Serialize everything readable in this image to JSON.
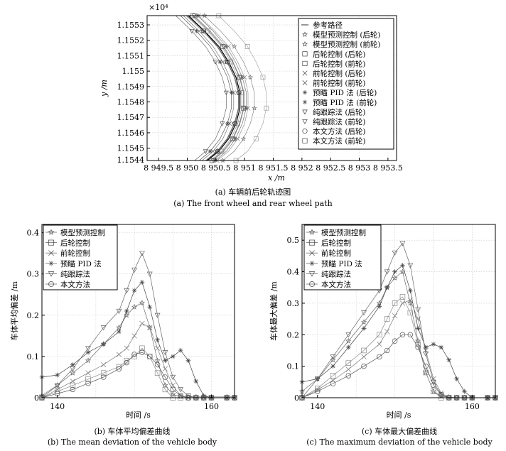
{
  "charts": [
    {
      "id": "a",
      "type": "line",
      "exponent_label": "×10⁴",
      "xlabel": "x /m",
      "ylabel": "y /m",
      "xlim": [
        8949.3,
        8953.65
      ],
      "ylim": [
        11544.2,
        11553.6
      ],
      "xticks": [
        8949.5,
        8950,
        8950.5,
        8951,
        8951.5,
        8952,
        8952.5,
        8953,
        8953.5
      ],
      "xtick_labels": [
        "8 949.5",
        "8 950",
        "8 950.5",
        "8 951",
        "8 951.5",
        "8 952",
        "8 952.5",
        "8 953",
        "8 953.5"
      ],
      "yticks": [
        11544,
        11545,
        11546,
        11547,
        11548,
        11549,
        11550,
        11551,
        11552,
        11553
      ],
      "ytick_labels": [
        "1.1544",
        "1.1545",
        "1.1546",
        "1.1547",
        "1.1548",
        "1.1549",
        "1.155",
        "1.1551",
        "1.1552",
        "1.1553"
      ],
      "grid": true,
      "legend_position": "right",
      "caption_cn": "(a) 车辆前后轮轨迹图",
      "caption_en": "(a) The front wheel and rear wheel path",
      "center_x": 8950.85,
      "series": [
        {
          "name": "参考路径",
          "marker": "none",
          "color": "#000000",
          "values_x": [
            8950.02,
            8950.3,
            8950.55,
            8950.72,
            8950.85,
            8950.92,
            8950.92,
            8950.85,
            8950.72,
            8950.55,
            8950.35
          ]
        },
        {
          "name": "模型预测控制 (后轮)",
          "marker": "star",
          "color": "#555555",
          "values_x": [
            8949.98,
            8950.27,
            8950.52,
            8950.69,
            8950.82,
            8950.89,
            8950.89,
            8950.82,
            8950.69,
            8950.52,
            8950.32
          ]
        },
        {
          "name": "模型预测控制 (前轮)",
          "marker": "star",
          "color": "#777777",
          "values_x": [
            8950.3,
            8950.58,
            8950.82,
            8950.98,
            8951.1,
            8951.17,
            8951.17,
            8951.1,
            8950.98,
            8950.82,
            8950.62
          ]
        },
        {
          "name": "后轮控制 (后轮)",
          "marker": "square",
          "color": "#888888",
          "values_x": [
            8950.08,
            8950.36,
            8950.6,
            8950.76,
            8950.88,
            8950.95,
            8950.95,
            8950.88,
            8950.76,
            8950.6,
            8950.4
          ]
        },
        {
          "name": "后轮控制 (前轮)",
          "marker": "square",
          "color": "#999999",
          "values_x": [
            8950.55,
            8950.82,
            8951.05,
            8951.2,
            8951.32,
            8951.38,
            8951.38,
            8951.32,
            8951.2,
            8951.05,
            8950.85
          ]
        },
        {
          "name": "前轮控制 (后轮)",
          "marker": "x",
          "color": "#666666",
          "values_x": [
            8949.93,
            8950.21,
            8950.45,
            8950.62,
            8950.74,
            8950.81,
            8950.81,
            8950.74,
            8950.62,
            8950.45,
            8950.26
          ]
        },
        {
          "name": "前轮控制 (前轮)",
          "marker": "x",
          "color": "#888888",
          "values_x": [
            8950.2,
            8950.48,
            8950.72,
            8950.88,
            8951.0,
            8951.06,
            8951.06,
            8951.0,
            8950.88,
            8950.72,
            8950.52
          ]
        },
        {
          "name": "预瞄 PID 法 (后轮)",
          "marker": "asterisk",
          "color": "#444444",
          "values_x": [
            8949.88,
            8950.16,
            8950.4,
            8950.57,
            8950.7,
            8950.77,
            8950.77,
            8950.7,
            8950.57,
            8950.4,
            8950.21
          ]
        },
        {
          "name": "预瞄 PID 法 (前轮)",
          "marker": "asterisk",
          "color": "#666666",
          "values_x": [
            8950.18,
            8950.45,
            8950.68,
            8950.84,
            8950.96,
            8951.03,
            8951.03,
            8950.96,
            8950.84,
            8950.68,
            8950.49
          ]
        },
        {
          "name": "纯跟踪法 (后轮)",
          "marker": "triangle",
          "color": "#555555",
          "values_x": [
            8949.8,
            8950.08,
            8950.32,
            8950.49,
            8950.61,
            8950.68,
            8950.68,
            8950.61,
            8950.49,
            8950.32,
            8950.13
          ]
        },
        {
          "name": "纯跟踪法 (前轮)",
          "marker": "triangle",
          "color": "#777777",
          "values_x": [
            8950.12,
            8950.4,
            8950.64,
            8950.8,
            8950.92,
            8950.99,
            8950.99,
            8950.92,
            8950.8,
            8950.64,
            8950.45
          ]
        },
        {
          "name": "本文方法 (后轮)",
          "marker": "circle",
          "color": "#333333",
          "values_x": [
            8950.0,
            8950.29,
            8950.53,
            8950.7,
            8950.83,
            8950.9,
            8950.9,
            8950.83,
            8950.7,
            8950.53,
            8950.33
          ]
        },
        {
          "name": "本文方法 (前轮)",
          "marker": "square",
          "color": "#555555",
          "values_x": [
            8950.1,
            8950.38,
            8950.62,
            8950.79,
            8950.91,
            8950.98,
            8950.98,
            8950.91,
            8950.79,
            8950.62,
            8950.43
          ]
        }
      ],
      "y": [
        11553.6,
        11552.6,
        11551.6,
        11550.6,
        11549.6,
        11548.6,
        11547.6,
        11546.6,
        11545.6,
        11544.8,
        11544.2
      ]
    },
    {
      "id": "b",
      "type": "line",
      "xlabel": "时间  /s",
      "ylabel": "车体平均偏差  /m",
      "xlim": [
        138,
        163
      ],
      "ylim": [
        0,
        0.42
      ],
      "xticks": [
        140,
        160
      ],
      "xtick_labels": [
        "140",
        "160"
      ],
      "yticks": [
        0,
        0.1,
        0.2,
        0.3,
        0.4
      ],
      "ytick_labels": [
        "0",
        "0.1",
        "0.2",
        "0.3",
        "0.4"
      ],
      "grid": true,
      "legend_position": "top-left",
      "caption_cn": "(b) 车体平均偏差曲线",
      "caption_en": "(b) The mean deviation of the vehicle body",
      "x": [
        138,
        140,
        142,
        144,
        146,
        148,
        149,
        150,
        151,
        152,
        153,
        154,
        155,
        156,
        157,
        158,
        159,
        160,
        162,
        163
      ],
      "series": [
        {
          "name": "模型预测控制",
          "marker": "star",
          "values": [
            0.005,
            0.03,
            0.06,
            0.09,
            0.13,
            0.17,
            0.2,
            0.22,
            0.23,
            0.17,
            0.09,
            0.03,
            0.008,
            0.003,
            0.002,
            0.002,
            0.002,
            0.002,
            0.002,
            0.002
          ]
        },
        {
          "name": "后轮控制",
          "marker": "square",
          "values": [
            0.0,
            0.015,
            0.03,
            0.045,
            0.06,
            0.075,
            0.09,
            0.1,
            0.12,
            0.1,
            0.06,
            0.02,
            0.0,
            0.0,
            0.0,
            0.0,
            0.0,
            0.0,
            0.0,
            0.0
          ]
        },
        {
          "name": "前轮控制",
          "marker": "x",
          "values": [
            0.0,
            0.02,
            0.04,
            0.06,
            0.08,
            0.105,
            0.12,
            0.15,
            0.18,
            0.17,
            0.12,
            0.07,
            0.03,
            0.005,
            0.0,
            0.0,
            0.0,
            0.0,
            0.0,
            0.0
          ]
        },
        {
          "name": "预瞄 PID 法",
          "marker": "asterisk",
          "values": [
            0.05,
            0.055,
            0.08,
            0.11,
            0.13,
            0.16,
            0.21,
            0.26,
            0.28,
            0.22,
            0.14,
            0.09,
            0.1,
            0.115,
            0.09,
            0.04,
            0.005,
            0.0,
            0.0,
            0.0
          ]
        },
        {
          "name": "纯跟踪法",
          "marker": "triangle",
          "values": [
            0.0,
            0.03,
            0.07,
            0.12,
            0.17,
            0.21,
            0.26,
            0.31,
            0.35,
            0.3,
            0.2,
            0.11,
            0.05,
            0.02,
            0.005,
            0.0,
            0.0,
            0.0,
            0.0,
            0.0
          ]
        },
        {
          "name": "本文方法",
          "marker": "circle",
          "values": [
            0.0,
            0.01,
            0.02,
            0.035,
            0.05,
            0.07,
            0.085,
            0.105,
            0.11,
            0.1,
            0.08,
            0.05,
            0.02,
            0.005,
            0.0,
            0.0,
            0.0,
            0.0,
            0.0,
            0.0
          ]
        }
      ]
    },
    {
      "id": "c",
      "type": "line",
      "xlabel": "时间  /s",
      "ylabel": "车体最大偏差  /m",
      "xlim": [
        138,
        163
      ],
      "ylim": [
        0,
        0.55
      ],
      "xticks": [
        140,
        160
      ],
      "xtick_labels": [
        "140",
        "160"
      ],
      "yticks": [
        0,
        0.1,
        0.2,
        0.3,
        0.4,
        0.5
      ],
      "ytick_labels": [
        "0",
        "0.1",
        "0.2",
        "0.3",
        "0.4",
        "0.5"
      ],
      "grid": true,
      "legend_position": "top-left",
      "caption_cn": "(c) 车体最大偏差曲线",
      "caption_en": "(c) The maximum deviation of the vehicle body",
      "x": [
        138,
        140,
        142,
        144,
        146,
        148,
        149,
        150,
        151,
        152,
        153,
        154,
        155,
        156,
        157,
        158,
        159,
        160,
        162,
        163
      ],
      "series": [
        {
          "name": "模型预测控制",
          "marker": "star",
          "values": [
            0.02,
            0.06,
            0.12,
            0.18,
            0.24,
            0.3,
            0.35,
            0.38,
            0.4,
            0.3,
            0.18,
            0.08,
            0.02,
            0.005,
            0.002,
            0.0,
            0.0,
            0.0,
            0.0,
            0.0
          ]
        },
        {
          "name": "后轮控制",
          "marker": "square",
          "values": [
            0.0,
            0.03,
            0.07,
            0.11,
            0.15,
            0.2,
            0.25,
            0.3,
            0.32,
            0.27,
            0.17,
            0.08,
            0.02,
            0.0,
            0.0,
            0.0,
            0.0,
            0.0,
            0.0,
            0.0
          ]
        },
        {
          "name": "前轮控制",
          "marker": "x",
          "values": [
            0.0,
            0.025,
            0.055,
            0.09,
            0.13,
            0.17,
            0.21,
            0.26,
            0.3,
            0.31,
            0.25,
            0.15,
            0.06,
            0.015,
            0.0,
            0.0,
            0.0,
            0.0,
            0.0,
            0.0
          ]
        },
        {
          "name": "预瞄 PID 法",
          "marker": "asterisk",
          "values": [
            0.05,
            0.06,
            0.1,
            0.16,
            0.22,
            0.29,
            0.35,
            0.4,
            0.42,
            0.34,
            0.22,
            0.16,
            0.17,
            0.16,
            0.12,
            0.06,
            0.02,
            0.0,
            0.0,
            0.0
          ]
        },
        {
          "name": "纯跟踪法",
          "marker": "triangle",
          "values": [
            0.0,
            0.06,
            0.13,
            0.2,
            0.27,
            0.34,
            0.4,
            0.46,
            0.49,
            0.42,
            0.28,
            0.14,
            0.05,
            0.01,
            0.0,
            0.0,
            0.0,
            0.0,
            0.0,
            0.0
          ]
        },
        {
          "name": "本文方法",
          "marker": "circle",
          "values": [
            0.0,
            0.02,
            0.045,
            0.07,
            0.1,
            0.13,
            0.15,
            0.18,
            0.2,
            0.2,
            0.16,
            0.1,
            0.04,
            0.01,
            0.0,
            0.0,
            0.0,
            0.0,
            0.0,
            0.0
          ]
        }
      ]
    }
  ]
}
